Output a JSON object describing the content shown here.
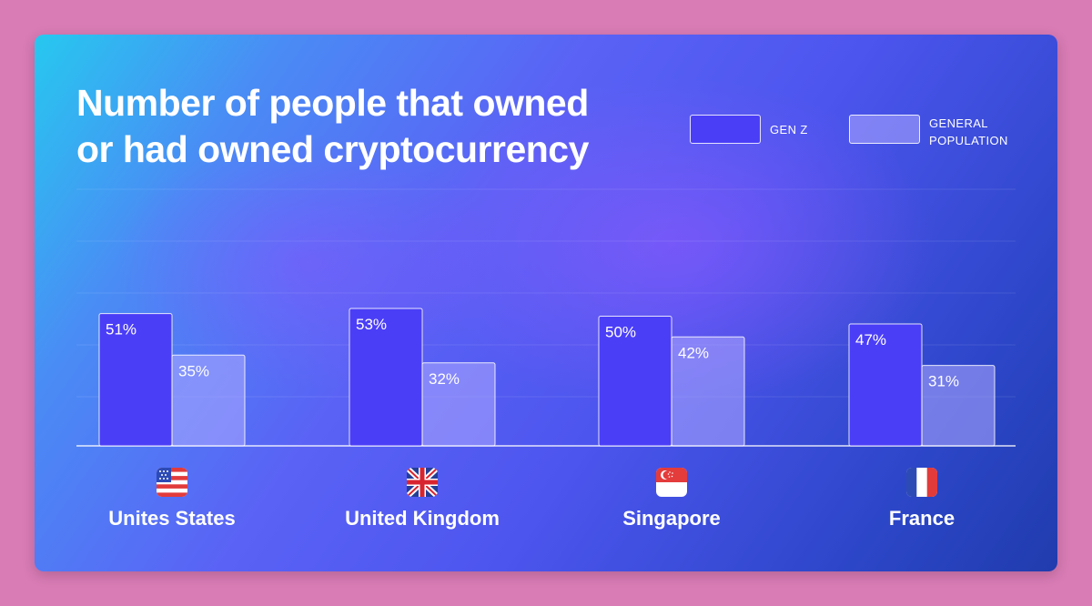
{
  "chart_data": {
    "type": "bar",
    "title": "Number of people that owned or had owned cryptocurrency",
    "title_lines": [
      "Number of people that owned",
      "or had owned cryptocurrency"
    ],
    "xlabel": "",
    "ylabel": "",
    "ylim": [
      0,
      100
    ],
    "grid": true,
    "legend_position": "top-right",
    "categories": [
      "Unites States",
      "United Kingdom",
      "Singapore",
      "France"
    ],
    "category_icons": [
      "us-flag-icon",
      "uk-flag-icon",
      "singapore-flag-icon",
      "france-flag-icon"
    ],
    "series": [
      {
        "name": "GEN Z",
        "values": [
          51,
          53,
          50,
          47
        ],
        "labels": [
          "51%",
          "53%",
          "50%",
          "47%"
        ],
        "color": "#4b3ef7"
      },
      {
        "name": "GENERAL POPULATION",
        "values": [
          35,
          32,
          42,
          31
        ],
        "labels": [
          "35%",
          "32%",
          "42%",
          "31%"
        ],
        "color": "#aeaaff"
      }
    ]
  },
  "colors": {
    "page_background": "#d97bb5",
    "card_gradient_start": "#27c8ef",
    "card_gradient_end": "#203cad",
    "text": "#ffffff"
  }
}
